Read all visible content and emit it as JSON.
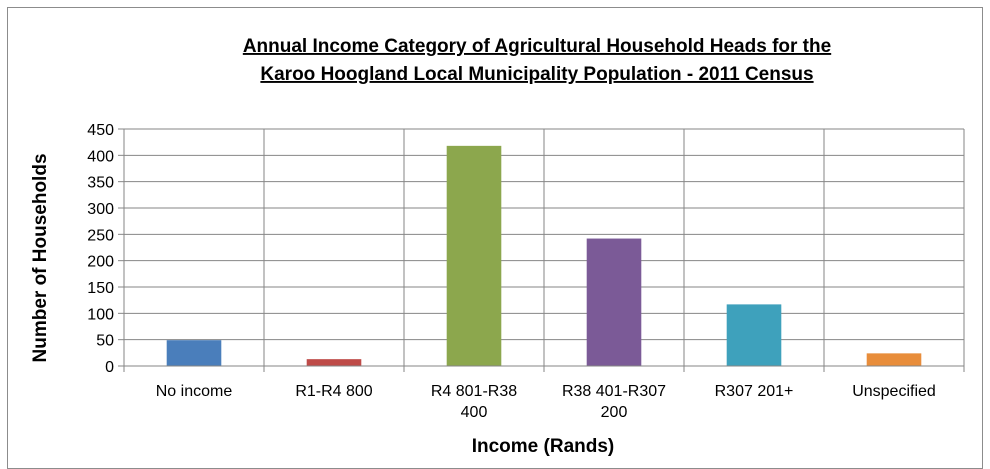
{
  "chart_data": {
    "type": "bar",
    "title_lines": [
      "Annual Income Category of Agricultural Household Heads for the",
      "Karoo Hoogland Local Municipality Population - 2011 Census"
    ],
    "xlabel": "Income (Rands)",
    "ylabel": "Number of Households",
    "ylim": [
      0,
      450
    ],
    "yticks": [
      "0",
      "50",
      "100",
      "150",
      "200",
      "250",
      "300",
      "350",
      "400",
      "450"
    ],
    "grid": true,
    "legend": "none",
    "categories": [
      [
        "No income"
      ],
      [
        "R1-R4 800"
      ],
      [
        "R4 801-R38",
        "400"
      ],
      [
        "R38 401-R307",
        "200"
      ],
      [
        "R307 201+"
      ],
      [
        "Unspecified"
      ]
    ],
    "values": [
      49,
      13,
      418,
      242,
      117,
      24
    ],
    "colors": [
      "#4a7ebb",
      "#be4b48",
      "#8ca74d",
      "#7b5a97",
      "#3ea1bc",
      "#e88d3b"
    ]
  }
}
